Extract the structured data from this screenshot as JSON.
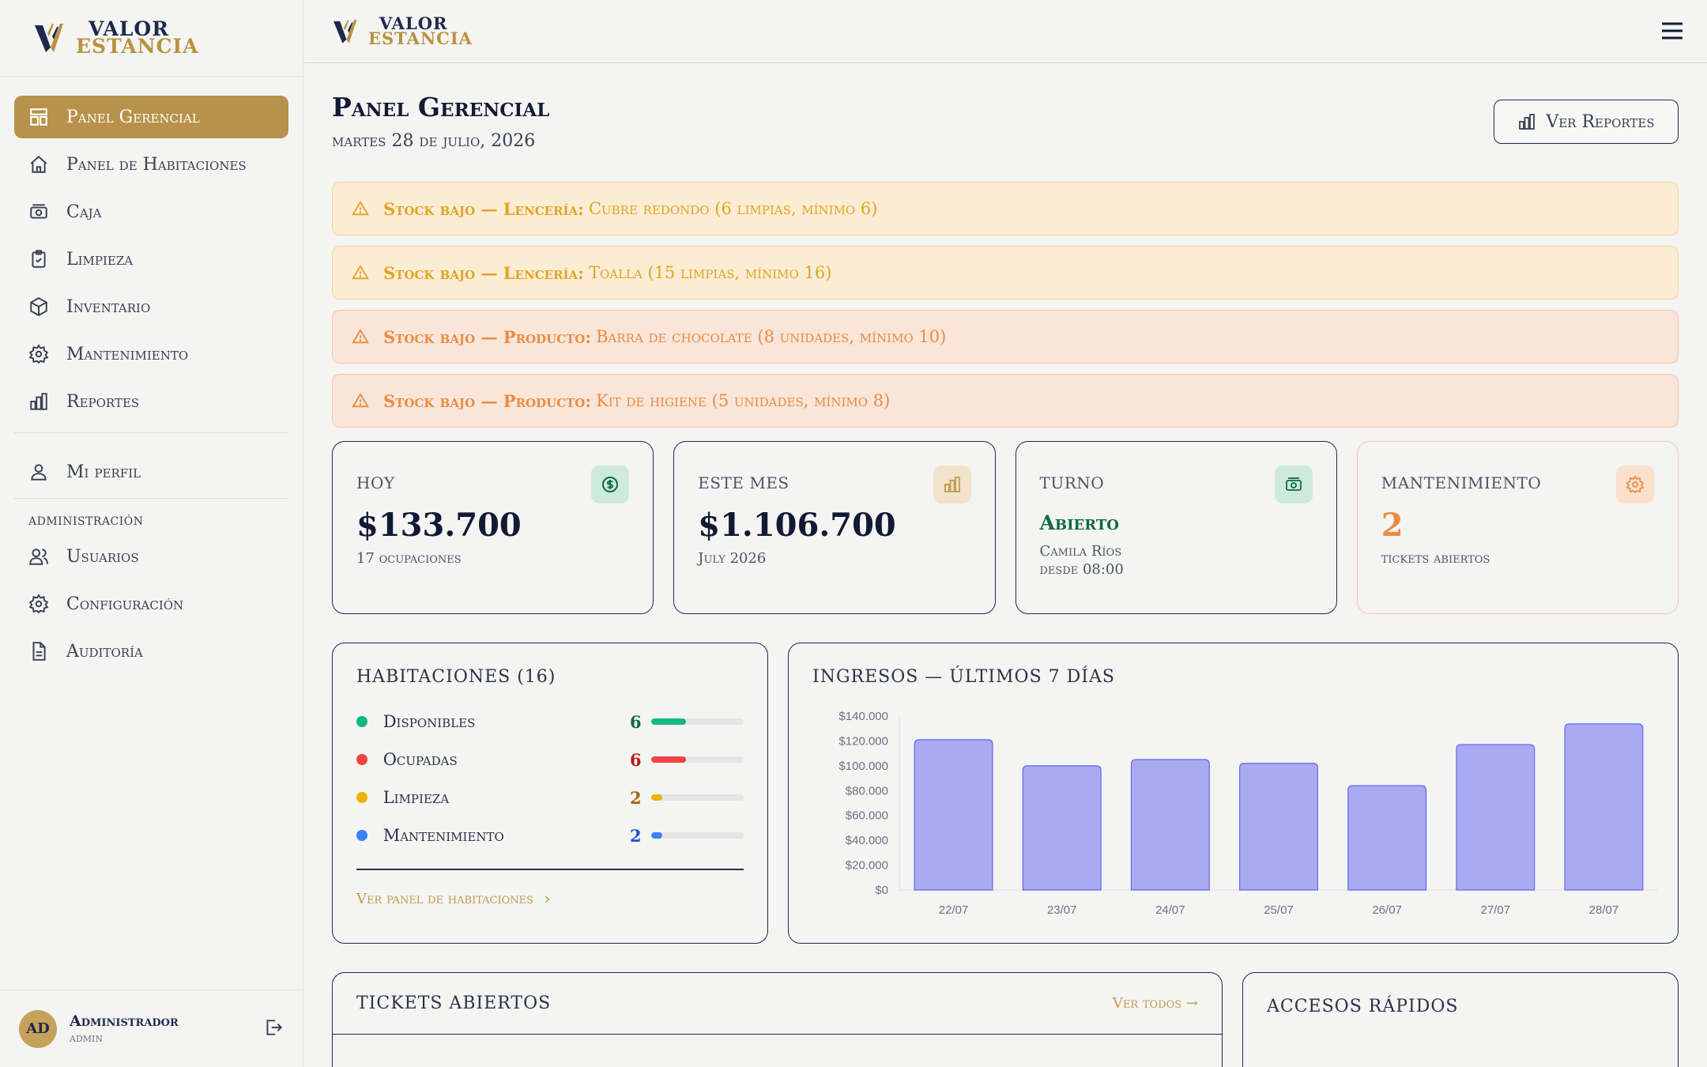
{
  "brand": {
    "line1": "VALOR",
    "line2": "ESTANCIA"
  },
  "sidebar": {
    "items": [
      {
        "label": "Panel Gerencial",
        "icon": "dashboard-icon",
        "active": true
      },
      {
        "label": "Panel de Habitaciones",
        "icon": "home-icon"
      },
      {
        "label": "Caja",
        "icon": "cash-icon"
      },
      {
        "label": "Limpieza",
        "icon": "clipboard-check-icon"
      },
      {
        "label": "Inventario",
        "icon": "box-icon"
      },
      {
        "label": "Mantenimiento",
        "icon": "gear-icon"
      },
      {
        "label": "Reportes",
        "icon": "bar-chart-icon"
      }
    ],
    "profile_label": "Mi perfil",
    "admin_section": "administración",
    "admin_items": [
      {
        "label": "Usuarios",
        "icon": "users-icon"
      },
      {
        "label": "Configuración",
        "icon": "gear-icon"
      },
      {
        "label": "Auditoría",
        "icon": "document-icon"
      }
    ],
    "user": {
      "initials": "AD",
      "name": "Administrador",
      "role": "admin"
    }
  },
  "header": {
    "title": "Panel Gerencial",
    "date": "martes 28 de julio, 2026",
    "reports_button": "Ver Reportes"
  },
  "alerts": [
    {
      "strong": "Stock bajo — Lencería:",
      "text": "Cubre redondo (6 limpias, mínimo 6)",
      "tone": "amber"
    },
    {
      "strong": "Stock bajo — Lencería:",
      "text": "Toalla (15 limpias, mínimo 16)",
      "tone": "amber"
    },
    {
      "strong": "Stock bajo — Producto:",
      "text": "Barra de chocolate (8 unidades, mínimo 10)",
      "tone": "orange"
    },
    {
      "strong": "Stock bajo — Producto:",
      "text": "Kit de higiene (5 unidades, mínimo 8)",
      "tone": "orange"
    }
  ],
  "stats": {
    "today": {
      "label": "HOY",
      "value": "$133.700",
      "sub": "17 ocupaciones"
    },
    "month": {
      "label": "ESTE MES",
      "value": "$1.106.700",
      "sub": "July 2026"
    },
    "shift": {
      "label": "TURNO",
      "status": "Abierto",
      "person": "Camila Ríos",
      "since": "desde 08:00"
    },
    "maintenance": {
      "label": "MANTENIMIENTO",
      "value": "2",
      "sub": "tickets abiertos"
    }
  },
  "rooms": {
    "title": "HABITACIONES (16)",
    "total": 16,
    "rows": [
      {
        "label": "Disponibles",
        "count": 6,
        "color": "#10b981",
        "count_color": "#0f6a3f"
      },
      {
        "label": "Ocupadas",
        "count": 6,
        "color": "#ef4444",
        "count_color": "#b91c1c"
      },
      {
        "label": "Limpieza",
        "count": 2,
        "color": "#eab308",
        "count_color": "#a16207"
      },
      {
        "label": "Mantenimiento",
        "count": 2,
        "color": "#3b82f6",
        "count_color": "#1d4ed8"
      }
    ],
    "link": "Ver panel de habitaciones"
  },
  "income": {
    "title": "INGRESOS — ÚLTIMOS 7 DÍAS"
  },
  "chart_data": {
    "type": "bar",
    "categories": [
      "22/07",
      "23/07",
      "24/07",
      "25/07",
      "26/07",
      "27/07",
      "28/07"
    ],
    "values": [
      121000,
      100000,
      105000,
      102000,
      84000,
      117000,
      133700
    ],
    "ylim": [
      0,
      140000
    ],
    "yticks": [
      "$0",
      "$20.000",
      "$40.000",
      "$60.000",
      "$80.000",
      "$100.000",
      "$120.000",
      "$140.000"
    ],
    "ytick_values": [
      0,
      20000,
      40000,
      60000,
      80000,
      100000,
      120000,
      140000
    ],
    "bar_color": "#a9aaf0",
    "bar_stroke": "#6366f1",
    "grid": false
  },
  "tickets": {
    "title": "TICKETS ABIERTOS",
    "see_all": "Ver todos →"
  },
  "quick": {
    "title": "ACCESOS RÁPIDOS"
  },
  "colors": {
    "accent": "#b8924a",
    "navy": "#1e2a4a"
  }
}
